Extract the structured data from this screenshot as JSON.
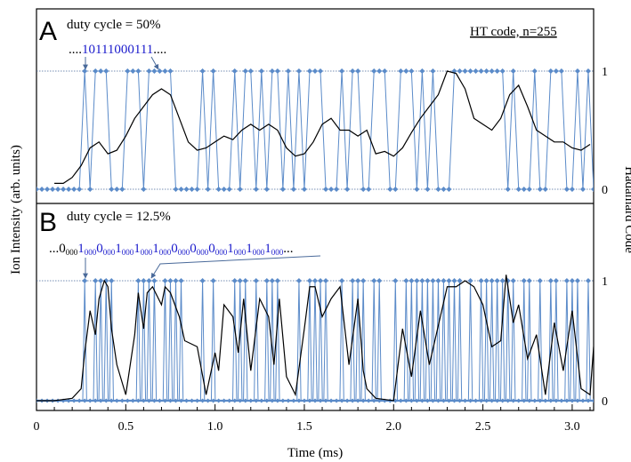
{
  "chart_data": [
    {
      "type": "line",
      "panel_label": "A",
      "annotation": "duty cycle = 50%",
      "code_label": "HT code, n=255",
      "sequence_prefix": "....",
      "sequence_blue": "10111000111",
      "sequence_suffix": "....",
      "y_right_ticks": [
        "1",
        "0"
      ],
      "xlim": [
        0,
        3.12
      ],
      "series": [
        {
          "role": "hadamard-code",
          "color": "#5b8bc9",
          "x": [
            0.0,
            0.03,
            0.06,
            0.09,
            0.12,
            0.15,
            0.18,
            0.21,
            0.24,
            0.27,
            0.3,
            0.33,
            0.36,
            0.39,
            0.42,
            0.45,
            0.48,
            0.51,
            0.54,
            0.57,
            0.6,
            0.63,
            0.66,
            0.69,
            0.72,
            0.75,
            0.78,
            0.81,
            0.84,
            0.87,
            0.9,
            0.93,
            0.96,
            0.99,
            1.02,
            1.05,
            1.08,
            1.11,
            1.14,
            1.17,
            1.2,
            1.23,
            1.26,
            1.29,
            1.32,
            1.35,
            1.38,
            1.41,
            1.44,
            1.47,
            1.5,
            1.53,
            1.56,
            1.59,
            1.62,
            1.65,
            1.68,
            1.71,
            1.74,
            1.77,
            1.8,
            1.83,
            1.86,
            1.89,
            1.92,
            1.95,
            1.98,
            2.01,
            2.04,
            2.07,
            2.1,
            2.13,
            2.16,
            2.19,
            2.22,
            2.25,
            2.28,
            2.31,
            2.34,
            2.37,
            2.4,
            2.43,
            2.46,
            2.49,
            2.52,
            2.55,
            2.58,
            2.61,
            2.64,
            2.67,
            2.7,
            2.73,
            2.76,
            2.79,
            2.82,
            2.85,
            2.88,
            2.91,
            2.94,
            2.97,
            3.0,
            3.03,
            3.06,
            3.09,
            3.12
          ],
          "values": [
            0,
            0,
            0,
            0,
            0,
            0,
            0,
            0,
            0,
            1,
            0,
            1,
            1,
            1,
            0,
            0,
            0,
            1,
            1,
            1,
            0,
            1,
            1,
            1,
            1,
            1,
            0,
            0,
            0,
            0,
            0,
            1,
            0,
            1,
            0,
            0,
            0,
            1,
            0,
            1,
            1,
            0,
            1,
            0,
            1,
            1,
            0,
            1,
            0,
            1,
            0,
            1,
            1,
            1,
            0,
            0,
            0,
            1,
            0,
            1,
            1,
            0,
            0,
            1,
            1,
            1,
            0,
            0,
            1,
            1,
            1,
            0,
            1,
            0,
            1,
            0,
            0,
            0,
            1,
            1,
            1,
            1,
            1,
            1,
            1,
            1,
            1,
            1,
            0,
            1,
            0,
            0,
            0,
            1,
            0,
            0,
            1,
            1,
            1,
            0,
            0,
            1,
            0,
            1,
            0
          ]
        },
        {
          "role": "ion-intensity",
          "color": "#000000",
          "x": [
            0.1,
            0.15,
            0.2,
            0.25,
            0.3,
            0.35,
            0.4,
            0.45,
            0.5,
            0.55,
            0.6,
            0.65,
            0.7,
            0.75,
            0.8,
            0.85,
            0.9,
            0.95,
            1.0,
            1.05,
            1.1,
            1.15,
            1.2,
            1.25,
            1.3,
            1.35,
            1.4,
            1.45,
            1.5,
            1.55,
            1.6,
            1.65,
            1.7,
            1.75,
            1.8,
            1.85,
            1.9,
            1.95,
            2.0,
            2.05,
            2.1,
            2.15,
            2.2,
            2.25,
            2.3,
            2.35,
            2.4,
            2.45,
            2.5,
            2.55,
            2.6,
            2.65,
            2.7,
            2.75,
            2.8,
            2.85,
            2.9,
            2.95,
            3.0,
            3.05,
            3.1
          ],
          "values": [
            0.05,
            0.05,
            0.1,
            0.2,
            0.35,
            0.4,
            0.3,
            0.33,
            0.45,
            0.6,
            0.7,
            0.8,
            0.85,
            0.8,
            0.6,
            0.4,
            0.33,
            0.35,
            0.4,
            0.45,
            0.42,
            0.5,
            0.55,
            0.5,
            0.55,
            0.5,
            0.35,
            0.28,
            0.3,
            0.4,
            0.55,
            0.6,
            0.5,
            0.5,
            0.45,
            0.5,
            0.3,
            0.32,
            0.28,
            0.35,
            0.48,
            0.6,
            0.7,
            0.8,
            1.0,
            0.98,
            0.85,
            0.6,
            0.55,
            0.5,
            0.6,
            0.8,
            0.88,
            0.7,
            0.5,
            0.45,
            0.4,
            0.4,
            0.35,
            0.33,
            0.38
          ]
        }
      ]
    },
    {
      "type": "line",
      "panel_label": "B",
      "annotation": "duty cycle = 12.5%",
      "sequence_text": [
        {
          "t": "...0",
          "c": "black",
          "sub": false
        },
        {
          "t": "000",
          "c": "black",
          "sub": true
        },
        {
          "t": "1",
          "c": "blue",
          "sub": false
        },
        {
          "t": "000",
          "c": "blue",
          "sub": true
        },
        {
          "t": "0",
          "c": "blue",
          "sub": false
        },
        {
          "t": "000",
          "c": "blue",
          "sub": true
        },
        {
          "t": "1",
          "c": "blue",
          "sub": false
        },
        {
          "t": "000",
          "c": "blue",
          "sub": true
        },
        {
          "t": "1",
          "c": "blue",
          "sub": false
        },
        {
          "t": "000",
          "c": "blue",
          "sub": true
        },
        {
          "t": "1",
          "c": "blue",
          "sub": false
        },
        {
          "t": "000",
          "c": "blue",
          "sub": true
        },
        {
          "t": "0",
          "c": "blue",
          "sub": false
        },
        {
          "t": "000",
          "c": "blue",
          "sub": true
        },
        {
          "t": "0",
          "c": "blue",
          "sub": false
        },
        {
          "t": "000",
          "c": "blue",
          "sub": true
        },
        {
          "t": "0",
          "c": "blue",
          "sub": false
        },
        {
          "t": "000",
          "c": "blue",
          "sub": true
        },
        {
          "t": "1",
          "c": "blue",
          "sub": false
        },
        {
          "t": "000",
          "c": "blue",
          "sub": true
        },
        {
          "t": "1",
          "c": "blue",
          "sub": false
        },
        {
          "t": "000",
          "c": "blue",
          "sub": true
        },
        {
          "t": "1",
          "c": "blue",
          "sub": false
        },
        {
          "t": "000",
          "c": "blue",
          "sub": true
        },
        {
          "t": "...",
          "c": "black",
          "sub": false
        }
      ],
      "y_right_ticks": [
        "1",
        "0"
      ],
      "xlim": [
        0,
        3.12
      ],
      "series": [
        {
          "role": "hadamard-code-pulses",
          "color": "#5b8bc9",
          "x": [
            0.27,
            0.33,
            0.36,
            0.39,
            0.42,
            0.57,
            0.6,
            0.63,
            0.66,
            0.72,
            0.75,
            0.78,
            0.81,
            0.93,
            0.99,
            1.11,
            1.14,
            1.17,
            1.23,
            1.29,
            1.32,
            1.35,
            1.47,
            1.53,
            1.56,
            1.59,
            1.62,
            1.71,
            1.77,
            1.8,
            1.83,
            1.89,
            1.92,
            2.01,
            2.07,
            2.1,
            2.13,
            2.16,
            2.19,
            2.22,
            2.25,
            2.28,
            2.31,
            2.34,
            2.37,
            2.43,
            2.49,
            2.52,
            2.55,
            2.58,
            2.61,
            2.64,
            2.67,
            2.73,
            2.76,
            2.82,
            2.88,
            2.91,
            2.97,
            3.0,
            3.03,
            3.09
          ]
        },
        {
          "role": "ion-intensity",
          "color": "#000000",
          "x": [
            0.0,
            0.1,
            0.2,
            0.25,
            0.27,
            0.3,
            0.33,
            0.35,
            0.38,
            0.4,
            0.42,
            0.45,
            0.5,
            0.55,
            0.57,
            0.6,
            0.62,
            0.65,
            0.7,
            0.72,
            0.75,
            0.8,
            0.83,
            0.9,
            0.95,
            1.0,
            1.02,
            1.05,
            1.1,
            1.13,
            1.16,
            1.2,
            1.25,
            1.3,
            1.33,
            1.36,
            1.4,
            1.45,
            1.5,
            1.53,
            1.56,
            1.6,
            1.65,
            1.7,
            1.75,
            1.8,
            1.83,
            1.85,
            1.9,
            2.0,
            2.05,
            2.1,
            2.15,
            2.2,
            2.3,
            2.35,
            2.4,
            2.45,
            2.5,
            2.55,
            2.6,
            2.63,
            2.67,
            2.7,
            2.75,
            2.8,
            2.85,
            2.9,
            2.95,
            3.0,
            3.05,
            3.1,
            3.12
          ],
          "values": [
            0,
            0,
            0.02,
            0.1,
            0.4,
            0.75,
            0.55,
            0.85,
            1.0,
            0.95,
            0.6,
            0.3,
            0.05,
            0.55,
            0.9,
            0.6,
            0.9,
            0.95,
            0.8,
            0.95,
            0.9,
            0.7,
            0.5,
            0.45,
            0.05,
            0.4,
            0.25,
            0.8,
            0.7,
            0.4,
            0.85,
            0.25,
            0.85,
            0.7,
            0.3,
            0.85,
            0.2,
            0.05,
            0.6,
            0.95,
            0.95,
            0.7,
            0.85,
            0.95,
            0.3,
            0.85,
            0.25,
            0.1,
            0.02,
            0.0,
            0.6,
            0.2,
            0.75,
            0.3,
            0.95,
            0.95,
            1.0,
            0.95,
            0.8,
            0.45,
            0.5,
            1.05,
            0.65,
            0.8,
            0.35,
            0.55,
            0.05,
            0.65,
            0.25,
            0.75,
            0.1,
            0.05,
            0.45
          ]
        }
      ]
    }
  ],
  "axes": {
    "x_title": "Time (ms)",
    "x_ticks": [
      "0",
      "0.5",
      "1.0",
      "1.5",
      "2.0",
      "2.5",
      "3.0"
    ],
    "x_tick_values": [
      0,
      0.5,
      1.0,
      1.5,
      2.0,
      2.5,
      3.0
    ],
    "y_left_title": "Ion Intensity (arb. units)",
    "y_right_title": "Hadamard Code"
  }
}
